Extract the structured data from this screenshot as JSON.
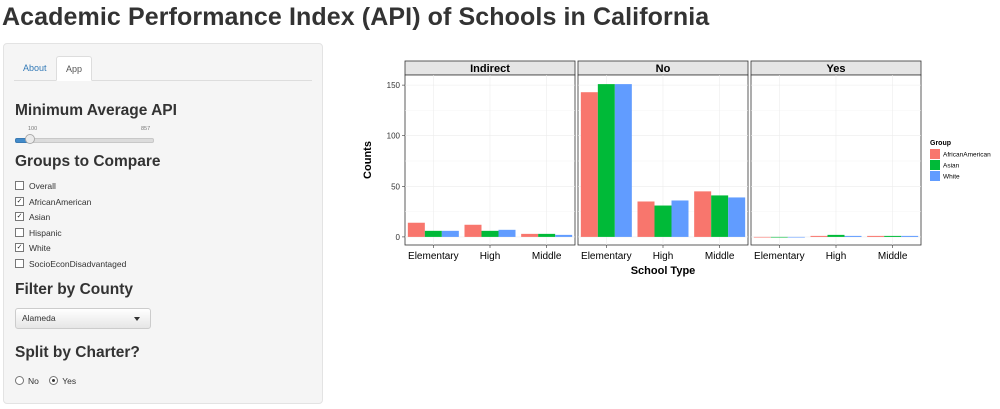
{
  "title": "Academic Performance Index (API) of Schools in California",
  "tabs": [
    {
      "label": "About",
      "active": false
    },
    {
      "label": "App",
      "active": true
    }
  ],
  "sidebar": {
    "min_api": {
      "heading": "Minimum Average API",
      "min_label": "100",
      "max_label": "857",
      "value": 100
    },
    "groups": {
      "heading": "Groups to Compare",
      "items": [
        {
          "label": "Overall",
          "checked": false
        },
        {
          "label": "AfricanAmerican",
          "checked": true
        },
        {
          "label": "Asian",
          "checked": true
        },
        {
          "label": "Hispanic",
          "checked": false
        },
        {
          "label": "White",
          "checked": true
        },
        {
          "label": "SocioEconDisadvantaged",
          "checked": false
        }
      ]
    },
    "county": {
      "heading": "Filter by County",
      "selected": "Alameda"
    },
    "charter": {
      "heading": "Split by Charter?",
      "options": [
        {
          "label": "No",
          "checked": false
        },
        {
          "label": "Yes",
          "checked": true
        }
      ]
    }
  },
  "chart_data": {
    "type": "bar",
    "facets": [
      "Indirect",
      "No",
      "Yes"
    ],
    "categories": [
      "Elementary",
      "High",
      "Middle"
    ],
    "xlabel": "School Type",
    "ylabel": "Counts",
    "ylim": [
      0,
      160
    ],
    "yticks": [
      0,
      50,
      100,
      150
    ],
    "legend": {
      "title": "Group",
      "position": "right"
    },
    "series": [
      {
        "name": "AfricanAmerican",
        "color": "#F8766D",
        "values": [
          [
            14,
            12,
            3
          ],
          [
            143,
            35,
            45
          ],
          [
            0,
            1,
            1
          ]
        ]
      },
      {
        "name": "Asian",
        "color": "#00BA38",
        "values": [
          [
            6,
            6,
            3
          ],
          [
            151,
            31,
            41
          ],
          [
            0,
            2,
            1
          ]
        ]
      },
      {
        "name": "White",
        "color": "#619CFF",
        "values": [
          [
            6,
            7,
            2
          ],
          [
            151,
            36,
            39
          ],
          [
            0,
            1,
            1
          ]
        ]
      }
    ]
  }
}
